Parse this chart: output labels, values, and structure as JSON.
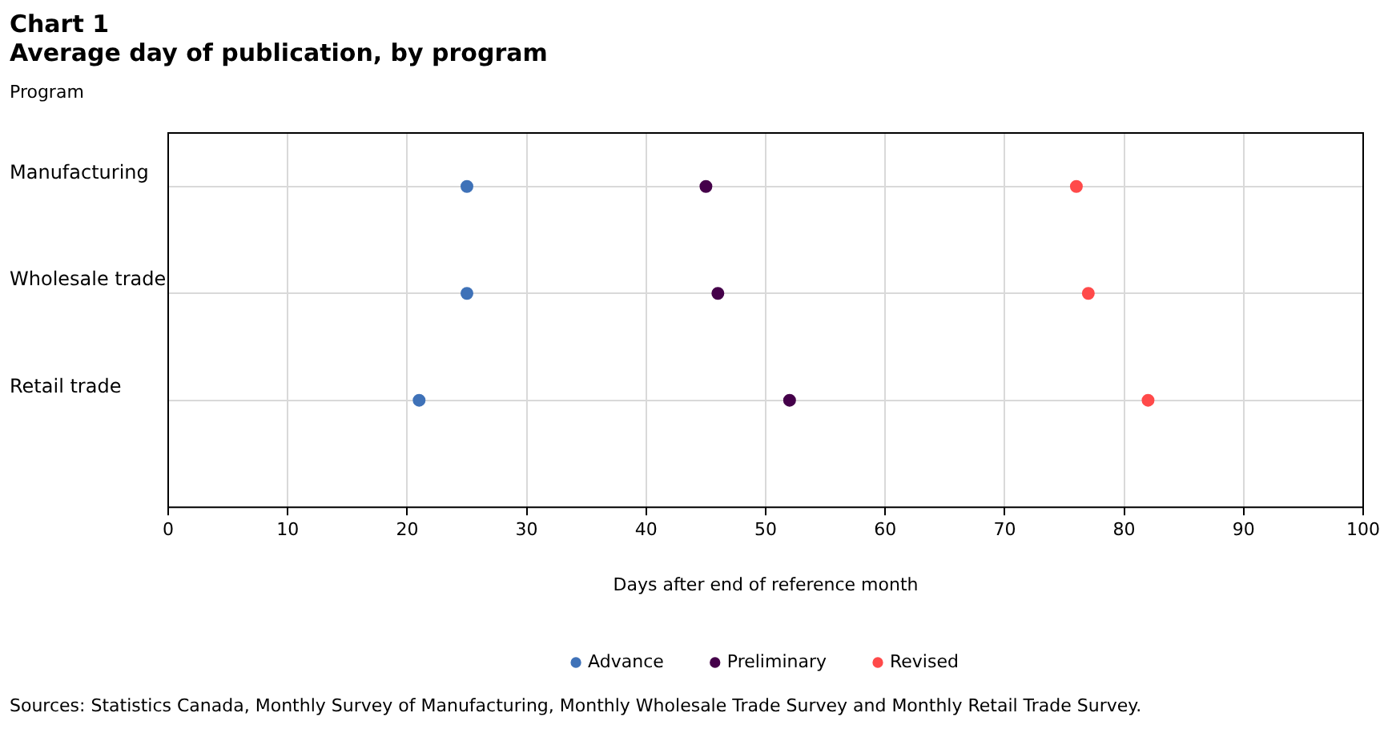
{
  "chart_data": {
    "type": "scatter",
    "orientation": "horizontal",
    "title": "Chart 1",
    "subtitle": "Average day of publication,  by program",
    "ylabel": "Program",
    "xlabel": "Days after end of reference month",
    "categories": [
      "Manufacturing",
      "Wholesale trade",
      "Retail trade"
    ],
    "series": [
      {
        "name": "Advance",
        "color": "#3f72b8",
        "values": [
          25,
          25,
          21
        ]
      },
      {
        "name": "Preliminary",
        "color": "#45004a",
        "values": [
          45,
          46,
          52
        ]
      },
      {
        "name": "Revised",
        "color": "#ff4a4a",
        "values": [
          76,
          77,
          82
        ]
      }
    ],
    "xlim": [
      0,
      100
    ],
    "xticks": [
      0,
      10,
      20,
      30,
      40,
      50,
      60,
      70,
      80,
      90,
      100
    ],
    "grid": true,
    "legend": "bottom",
    "marker": "circle",
    "annotations": [
      "Sources: Statistics Canada, Monthly Survey of Manufacturing, Monthly Wholesale Trade Survey and Monthly Retail Trade Survey."
    ]
  }
}
